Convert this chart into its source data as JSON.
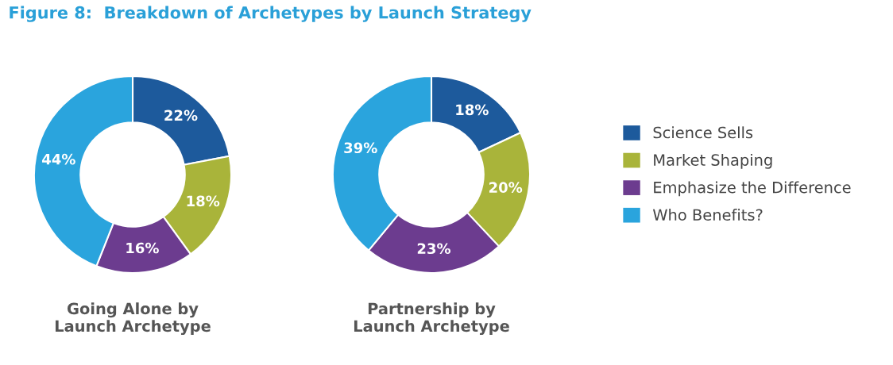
{
  "chart_data": [
    {
      "type": "donut",
      "title": "Figure 8:  Breakdown of Archetypes by Launch Strategy",
      "xlabel": "Going Alone by\nLaunch Archetype",
      "categories": [
        "Science Sells",
        "Market Shaping",
        "Emphasize the Difference",
        "Who Benefits?"
      ],
      "values": [
        22,
        18,
        16,
        44
      ],
      "value_labels": [
        "22%",
        "18%",
        "16%",
        "44%"
      ],
      "colors": [
        "#1d5a9c",
        "#a9b43a",
        "#6c3c8f",
        "#2aa4dd"
      ],
      "legend": "right"
    },
    {
      "type": "donut",
      "xlabel": "Partnership by\nLaunch Archetype",
      "categories": [
        null,
        null,
        null,
        null
      ],
      "values": [
        18,
        20,
        23,
        39
      ],
      "value_labels": [
        "18%",
        "20%",
        "23%",
        "39%"
      ],
      "colors": [
        "#1d5a9c",
        "#a9b43a",
        "#6c3c8f",
        "#2aa4dd"
      ],
      "legend": false
    }
  ]
}
